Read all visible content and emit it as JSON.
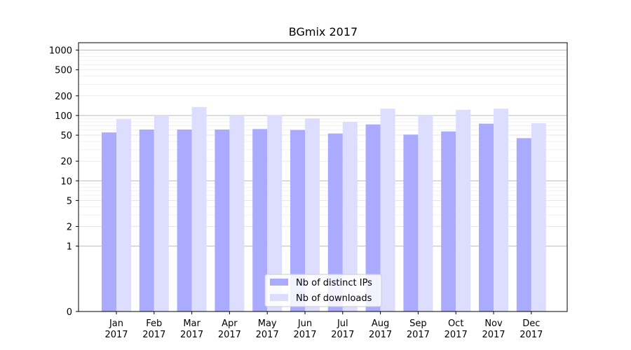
{
  "chart_data": {
    "type": "bar",
    "title": "BGmix 2017",
    "xlabel": "",
    "ylabel": "",
    "y_scale": "symlog",
    "ylim": [
      0,
      1300
    ],
    "y_ticks": [
      0,
      1,
      2,
      5,
      10,
      20,
      50,
      100,
      200,
      500,
      1000
    ],
    "y_tick_labels": [
      "0",
      "1",
      "2",
      "5",
      "10",
      "20",
      "50",
      "100",
      "200",
      "500",
      "1000"
    ],
    "categories": [
      "Jan\n2017",
      "Feb\n2017",
      "Mar\n2017",
      "Apr\n2017",
      "May\n2017",
      "Jun\n2017",
      "Jul\n2017",
      "Aug\n2017",
      "Sep\n2017",
      "Oct\n2017",
      "Nov\n2017",
      "Dec\n2017"
    ],
    "series": [
      {
        "name": "Nb of distinct IPs",
        "color": "#aaaaff",
        "values": [
          55,
          61,
          61,
          61,
          62,
          60,
          53,
          73,
          51,
          57,
          75,
          45
        ]
      },
      {
        "name": "Nb of downloads",
        "color": "#ddddff",
        "values": [
          88,
          100,
          135,
          100,
          102,
          90,
          80,
          127,
          100,
          122,
          127,
          76
        ]
      }
    ],
    "grid": true,
    "legend_position": "bottom-center"
  }
}
